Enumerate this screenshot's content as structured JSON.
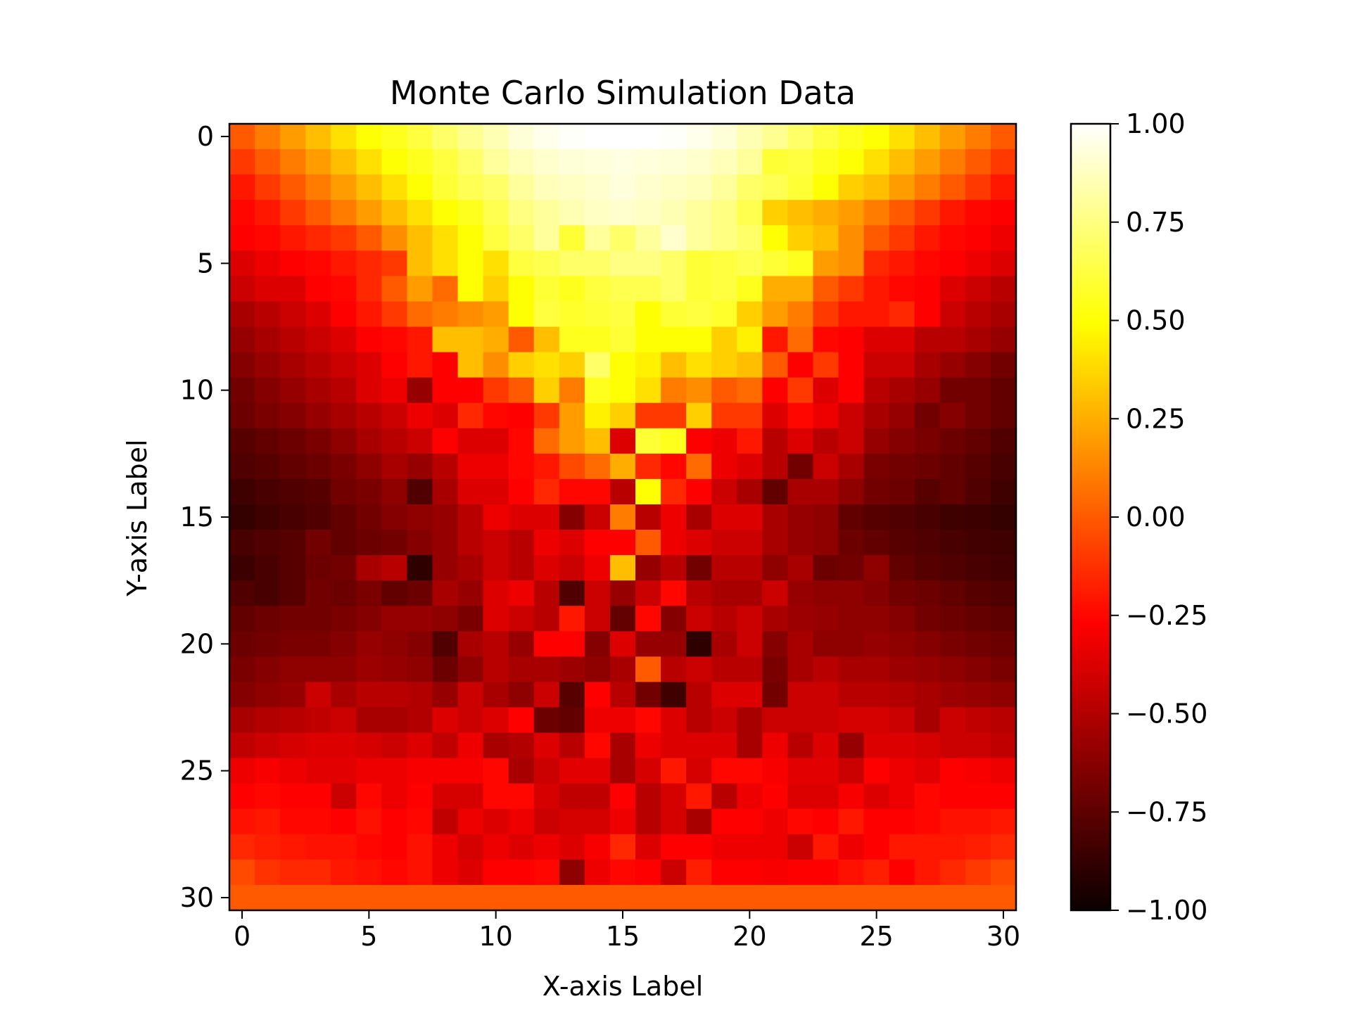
{
  "chart_data": {
    "type": "heatmap",
    "title": "Monte Carlo Simulation Data",
    "xlabel": "X-axis Label",
    "ylabel": "Y-axis Label",
    "colormap": "hot",
    "x_range": [
      0,
      30
    ],
    "y_range": [
      0,
      30
    ],
    "y_inverted": true,
    "x_ticks": [
      0,
      5,
      10,
      15,
      20,
      25,
      30
    ],
    "y_ticks": [
      0,
      5,
      10,
      15,
      20,
      25,
      30
    ],
    "x_tick_labels": [
      "0",
      "5",
      "10",
      "15",
      "20",
      "25",
      "30"
    ],
    "y_tick_labels": [
      "0",
      "5",
      "10",
      "15",
      "20",
      "25",
      "30"
    ],
    "colorbar": {
      "range": [
        -1.0,
        1.0
      ],
      "ticks": [
        -1.0,
        -0.75,
        -0.5,
        -0.25,
        0.0,
        0.25,
        0.5,
        0.75,
        1.0
      ],
      "tick_labels": [
        "−1.00",
        "−0.75",
        "−0.50",
        "−0.25",
        "0.00",
        "0.25",
        "0.50",
        "0.75",
        "1.00"
      ]
    },
    "values": [
      [
        0.0,
        0.1,
        0.2,
        0.3,
        0.4,
        0.5,
        0.55,
        0.62,
        0.7,
        0.78,
        0.85,
        0.92,
        0.96,
        0.99,
        1.0,
        1.0,
        1.0,
        0.99,
        0.96,
        0.92,
        0.85,
        0.78,
        0.7,
        0.62,
        0.55,
        0.5,
        0.4,
        0.3,
        0.2,
        0.1,
        0.0
      ],
      [
        -0.1,
        0.0,
        0.1,
        0.2,
        0.3,
        0.4,
        0.5,
        0.55,
        0.62,
        0.7,
        0.8,
        0.86,
        0.9,
        0.92,
        0.93,
        0.94,
        0.93,
        0.92,
        0.9,
        0.86,
        0.8,
        0.6,
        0.62,
        0.55,
        0.5,
        0.4,
        0.3,
        0.2,
        0.1,
        0.0,
        -0.1
      ],
      [
        -0.2,
        -0.1,
        0.0,
        0.1,
        0.2,
        0.3,
        0.4,
        0.5,
        0.6,
        0.66,
        0.7,
        0.8,
        0.86,
        0.88,
        0.9,
        0.93,
        0.9,
        0.88,
        0.86,
        0.8,
        0.7,
        0.66,
        0.6,
        0.5,
        0.35,
        0.3,
        0.2,
        0.1,
        0.0,
        -0.1,
        -0.2
      ],
      [
        -0.25,
        -0.2,
        -0.1,
        0.0,
        0.1,
        0.2,
        0.3,
        0.4,
        0.5,
        0.55,
        0.65,
        0.75,
        0.8,
        0.85,
        0.88,
        0.9,
        0.88,
        0.85,
        0.8,
        0.75,
        0.65,
        0.35,
        0.3,
        0.25,
        0.2,
        0.1,
        0.0,
        -0.1,
        -0.2,
        -0.25,
        -0.3
      ],
      [
        -0.3,
        -0.25,
        -0.2,
        -0.15,
        -0.1,
        0.0,
        0.15,
        0.3,
        0.4,
        0.5,
        0.62,
        0.7,
        0.8,
        0.6,
        0.8,
        0.7,
        0.8,
        0.9,
        0.8,
        0.75,
        0.7,
        0.5,
        0.35,
        0.3,
        0.15,
        0.0,
        -0.1,
        -0.2,
        -0.25,
        -0.3,
        -0.35
      ],
      [
        -0.4,
        -0.35,
        -0.3,
        -0.25,
        -0.2,
        -0.15,
        -0.1,
        0.3,
        0.4,
        0.5,
        0.4,
        0.62,
        0.65,
        0.7,
        0.7,
        0.75,
        0.75,
        0.7,
        0.6,
        0.62,
        0.65,
        0.6,
        0.55,
        0.2,
        0.15,
        -0.15,
        -0.2,
        -0.25,
        -0.3,
        -0.35,
        -0.4
      ],
      [
        -0.45,
        -0.4,
        -0.4,
        -0.3,
        -0.25,
        -0.15,
        0.0,
        0.2,
        0.05,
        0.5,
        0.35,
        0.5,
        0.6,
        0.55,
        0.62,
        0.65,
        0.65,
        0.7,
        0.6,
        0.62,
        0.55,
        0.25,
        0.25,
        0.0,
        -0.1,
        -0.2,
        -0.25,
        -0.3,
        -0.4,
        -0.45,
        -0.5
      ],
      [
        -0.55,
        -0.5,
        -0.45,
        -0.4,
        -0.3,
        -0.2,
        -0.1,
        0.05,
        0.1,
        0.15,
        0.2,
        0.5,
        0.62,
        0.58,
        0.6,
        0.62,
        0.5,
        0.6,
        0.62,
        0.58,
        0.35,
        0.2,
        0.1,
        -0.1,
        -0.2,
        -0.2,
        -0.15,
        -0.3,
        -0.45,
        -0.5,
        -0.55
      ],
      [
        -0.6,
        -0.55,
        -0.5,
        -0.45,
        -0.4,
        -0.3,
        -0.25,
        -0.2,
        0.3,
        0.3,
        0.25,
        0.0,
        0.3,
        0.55,
        0.55,
        0.6,
        0.5,
        0.5,
        0.5,
        0.35,
        0.45,
        -0.2,
        0.05,
        -0.25,
        -0.3,
        -0.4,
        -0.4,
        -0.5,
        -0.5,
        -0.55,
        -0.6
      ],
      [
        -0.65,
        -0.6,
        -0.55,
        -0.5,
        -0.45,
        -0.4,
        -0.3,
        -0.2,
        -0.3,
        0.3,
        0.15,
        0.35,
        0.4,
        0.35,
        0.7,
        0.5,
        0.45,
        0.3,
        0.4,
        0.35,
        0.3,
        0.0,
        -0.3,
        -0.1,
        -0.3,
        -0.45,
        -0.45,
        -0.55,
        -0.6,
        -0.65,
        -0.7
      ],
      [
        -0.7,
        -0.65,
        -0.6,
        -0.55,
        -0.5,
        -0.4,
        -0.35,
        -0.6,
        -0.3,
        -0.3,
        -0.1,
        0.0,
        0.35,
        0.1,
        0.55,
        0.5,
        0.4,
        0.1,
        0.15,
        0.0,
        0.05,
        -0.3,
        -0.1,
        -0.4,
        -0.3,
        -0.5,
        -0.55,
        -0.6,
        -0.7,
        -0.7,
        -0.75
      ],
      [
        -0.72,
        -0.68,
        -0.65,
        -0.6,
        -0.55,
        -0.5,
        -0.45,
        -0.35,
        -0.4,
        -0.15,
        -0.25,
        -0.3,
        -0.1,
        0.2,
        0.45,
        0.35,
        -0.1,
        -0.1,
        0.35,
        -0.1,
        -0.1,
        -0.4,
        -0.25,
        -0.35,
        -0.45,
        -0.55,
        -0.6,
        -0.7,
        -0.65,
        -0.7,
        -0.75
      ],
      [
        -0.78,
        -0.75,
        -0.72,
        -0.68,
        -0.62,
        -0.55,
        -0.5,
        -0.45,
        -0.3,
        -0.4,
        -0.4,
        -0.25,
        0.05,
        0.2,
        0.3,
        -0.4,
        0.6,
        0.55,
        -0.3,
        -0.35,
        -0.2,
        -0.5,
        -0.4,
        -0.5,
        -0.45,
        -0.6,
        -0.65,
        -0.68,
        -0.72,
        -0.75,
        -0.8
      ],
      [
        -0.8,
        -0.78,
        -0.75,
        -0.72,
        -0.68,
        -0.62,
        -0.55,
        -0.6,
        -0.5,
        -0.35,
        -0.35,
        -0.25,
        -0.2,
        -0.05,
        0.05,
        0.25,
        -0.15,
        -0.25,
        0.05,
        -0.35,
        -0.4,
        -0.5,
        -0.7,
        -0.45,
        -0.55,
        -0.68,
        -0.7,
        -0.72,
        -0.75,
        -0.78,
        -0.82
      ],
      [
        -0.85,
        -0.82,
        -0.8,
        -0.78,
        -0.7,
        -0.68,
        -0.62,
        -0.8,
        -0.55,
        -0.4,
        -0.4,
        -0.3,
        -0.15,
        -0.25,
        -0.25,
        -0.5,
        0.5,
        -0.15,
        -0.3,
        -0.45,
        -0.55,
        -0.75,
        -0.55,
        -0.55,
        -0.62,
        -0.7,
        -0.72,
        -0.78,
        -0.75,
        -0.8,
        -0.85
      ],
      [
        -0.88,
        -0.85,
        -0.82,
        -0.8,
        -0.75,
        -0.7,
        -0.65,
        -0.62,
        -0.6,
        -0.5,
        -0.35,
        -0.4,
        -0.4,
        -0.65,
        -0.45,
        0.1,
        -0.5,
        -0.35,
        -0.55,
        -0.4,
        -0.4,
        -0.55,
        -0.6,
        -0.62,
        -0.75,
        -0.78,
        -0.8,
        -0.82,
        -0.85,
        -0.86,
        -0.88
      ],
      [
        -0.82,
        -0.8,
        -0.78,
        -0.7,
        -0.75,
        -0.72,
        -0.7,
        -0.65,
        -0.6,
        -0.5,
        -0.45,
        -0.5,
        -0.35,
        -0.4,
        -0.3,
        -0.3,
        0.0,
        -0.35,
        -0.4,
        -0.45,
        -0.45,
        -0.55,
        -0.6,
        -0.62,
        -0.72,
        -0.75,
        -0.78,
        -0.8,
        -0.82,
        -0.84,
        -0.85
      ],
      [
        -0.86,
        -0.82,
        -0.78,
        -0.72,
        -0.7,
        -0.55,
        -0.5,
        -0.9,
        -0.6,
        -0.55,
        -0.45,
        -0.5,
        -0.4,
        -0.45,
        -0.35,
        0.3,
        -0.6,
        -0.5,
        -0.7,
        -0.5,
        -0.5,
        -0.62,
        -0.55,
        -0.72,
        -0.7,
        -0.62,
        -0.75,
        -0.78,
        -0.8,
        -0.82,
        -0.84
      ],
      [
        -0.8,
        -0.82,
        -0.78,
        -0.7,
        -0.72,
        -0.68,
        -0.75,
        -0.72,
        -0.55,
        -0.6,
        -0.4,
        -0.35,
        -0.5,
        -0.8,
        -0.45,
        -0.6,
        -0.45,
        -0.25,
        -0.5,
        -0.55,
        -0.55,
        -0.45,
        -0.6,
        -0.62,
        -0.62,
        -0.65,
        -0.7,
        -0.72,
        -0.75,
        -0.78,
        -0.8
      ],
      [
        -0.75,
        -0.72,
        -0.7,
        -0.7,
        -0.68,
        -0.65,
        -0.6,
        -0.6,
        -0.62,
        -0.68,
        -0.4,
        -0.45,
        -0.5,
        -0.2,
        -0.45,
        -0.75,
        -0.25,
        -0.65,
        -0.45,
        -0.5,
        -0.45,
        -0.55,
        -0.58,
        -0.6,
        -0.62,
        -0.62,
        -0.65,
        -0.7,
        -0.72,
        -0.74,
        -0.76
      ],
      [
        -0.72,
        -0.7,
        -0.68,
        -0.68,
        -0.65,
        -0.6,
        -0.62,
        -0.65,
        -0.8,
        -0.55,
        -0.5,
        -0.6,
        -0.3,
        -0.3,
        -0.65,
        -0.4,
        -0.6,
        -0.6,
        -0.9,
        -0.55,
        -0.45,
        -0.65,
        -0.55,
        -0.62,
        -0.62,
        -0.6,
        -0.62,
        -0.65,
        -0.68,
        -0.7,
        -0.72
      ],
      [
        -0.68,
        -0.65,
        -0.62,
        -0.62,
        -0.62,
        -0.58,
        -0.6,
        -0.62,
        -0.72,
        -0.62,
        -0.5,
        -0.55,
        -0.55,
        -0.58,
        -0.62,
        -0.55,
        0.0,
        -0.5,
        -0.45,
        -0.5,
        -0.5,
        -0.68,
        -0.55,
        -0.5,
        -0.55,
        -0.55,
        -0.58,
        -0.6,
        -0.62,
        -0.65,
        -0.68
      ],
      [
        -0.65,
        -0.62,
        -0.6,
        -0.45,
        -0.55,
        -0.5,
        -0.5,
        -0.52,
        -0.6,
        -0.45,
        -0.55,
        -0.62,
        -0.45,
        -0.78,
        -0.3,
        -0.5,
        -0.7,
        -0.85,
        -0.5,
        -0.4,
        -0.4,
        -0.7,
        -0.45,
        -0.45,
        -0.5,
        -0.5,
        -0.52,
        -0.55,
        -0.58,
        -0.6,
        -0.62
      ],
      [
        -0.55,
        -0.52,
        -0.5,
        -0.48,
        -0.45,
        -0.55,
        -0.55,
        -0.52,
        -0.4,
        -0.45,
        -0.4,
        -0.3,
        -0.72,
        -0.75,
        -0.35,
        -0.35,
        -0.25,
        -0.4,
        -0.5,
        -0.45,
        -0.55,
        -0.45,
        -0.45,
        -0.45,
        -0.42,
        -0.42,
        -0.45,
        -0.55,
        -0.45,
        -0.48,
        -0.5
      ],
      [
        -0.48,
        -0.45,
        -0.42,
        -0.4,
        -0.4,
        -0.42,
        -0.45,
        -0.4,
        -0.48,
        -0.35,
        -0.55,
        -0.52,
        -0.4,
        -0.5,
        -0.25,
        -0.55,
        -0.35,
        -0.4,
        -0.4,
        -0.4,
        -0.55,
        -0.35,
        -0.5,
        -0.4,
        -0.6,
        -0.4,
        -0.4,
        -0.42,
        -0.45,
        -0.45,
        -0.48
      ],
      [
        -0.35,
        -0.32,
        -0.35,
        -0.38,
        -0.38,
        -0.35,
        -0.35,
        -0.32,
        -0.32,
        -0.32,
        -0.25,
        -0.55,
        -0.45,
        -0.38,
        -0.38,
        -0.55,
        -0.42,
        -0.2,
        -0.42,
        -0.25,
        -0.25,
        -0.32,
        -0.38,
        -0.38,
        -0.45,
        -0.3,
        -0.35,
        -0.38,
        -0.3,
        -0.32,
        -0.35
      ],
      [
        -0.28,
        -0.25,
        -0.28,
        -0.3,
        -0.45,
        -0.25,
        -0.35,
        -0.3,
        -0.42,
        -0.42,
        -0.25,
        -0.25,
        -0.42,
        -0.48,
        -0.48,
        -0.3,
        -0.5,
        -0.42,
        -0.2,
        -0.5,
        -0.35,
        -0.28,
        -0.4,
        -0.4,
        -0.32,
        -0.4,
        -0.35,
        -0.25,
        -0.3,
        -0.3,
        -0.28
      ],
      [
        -0.22,
        -0.2,
        -0.25,
        -0.25,
        -0.28,
        -0.22,
        -0.3,
        -0.25,
        -0.48,
        -0.35,
        -0.4,
        -0.35,
        -0.45,
        -0.42,
        -0.42,
        -0.35,
        -0.5,
        -0.42,
        -0.55,
        -0.3,
        -0.3,
        -0.35,
        -0.25,
        -0.28,
        -0.2,
        -0.3,
        -0.3,
        -0.25,
        -0.22,
        -0.22,
        -0.2
      ],
      [
        -0.15,
        -0.18,
        -0.2,
        -0.22,
        -0.22,
        -0.25,
        -0.28,
        -0.22,
        -0.35,
        -0.42,
        -0.35,
        -0.4,
        -0.35,
        -0.4,
        -0.32,
        -0.15,
        -0.4,
        -0.28,
        -0.3,
        -0.35,
        -0.35,
        -0.35,
        -0.45,
        -0.2,
        -0.35,
        -0.3,
        -0.2,
        -0.2,
        -0.2,
        -0.18,
        -0.15
      ],
      [
        -0.05,
        -0.12,
        -0.15,
        -0.15,
        -0.2,
        -0.22,
        -0.25,
        -0.22,
        -0.35,
        -0.4,
        -0.28,
        -0.28,
        -0.25,
        -0.62,
        -0.35,
        -0.25,
        -0.3,
        -0.45,
        -0.18,
        -0.3,
        -0.3,
        -0.32,
        -0.28,
        -0.3,
        -0.22,
        -0.18,
        -0.28,
        -0.2,
        -0.15,
        -0.1,
        -0.05
      ],
      [
        0.0,
        0.0,
        0.0,
        0.0,
        0.0,
        0.0,
        0.0,
        0.0,
        0.0,
        0.0,
        0.0,
        0.0,
        0.0,
        0.0,
        0.0,
        0.0,
        0.0,
        0.0,
        0.0,
        0.0,
        0.0,
        0.0,
        0.0,
        0.0,
        0.0,
        0.0,
        0.0,
        0.0,
        0.0,
        0.0,
        0.0
      ]
    ]
  }
}
